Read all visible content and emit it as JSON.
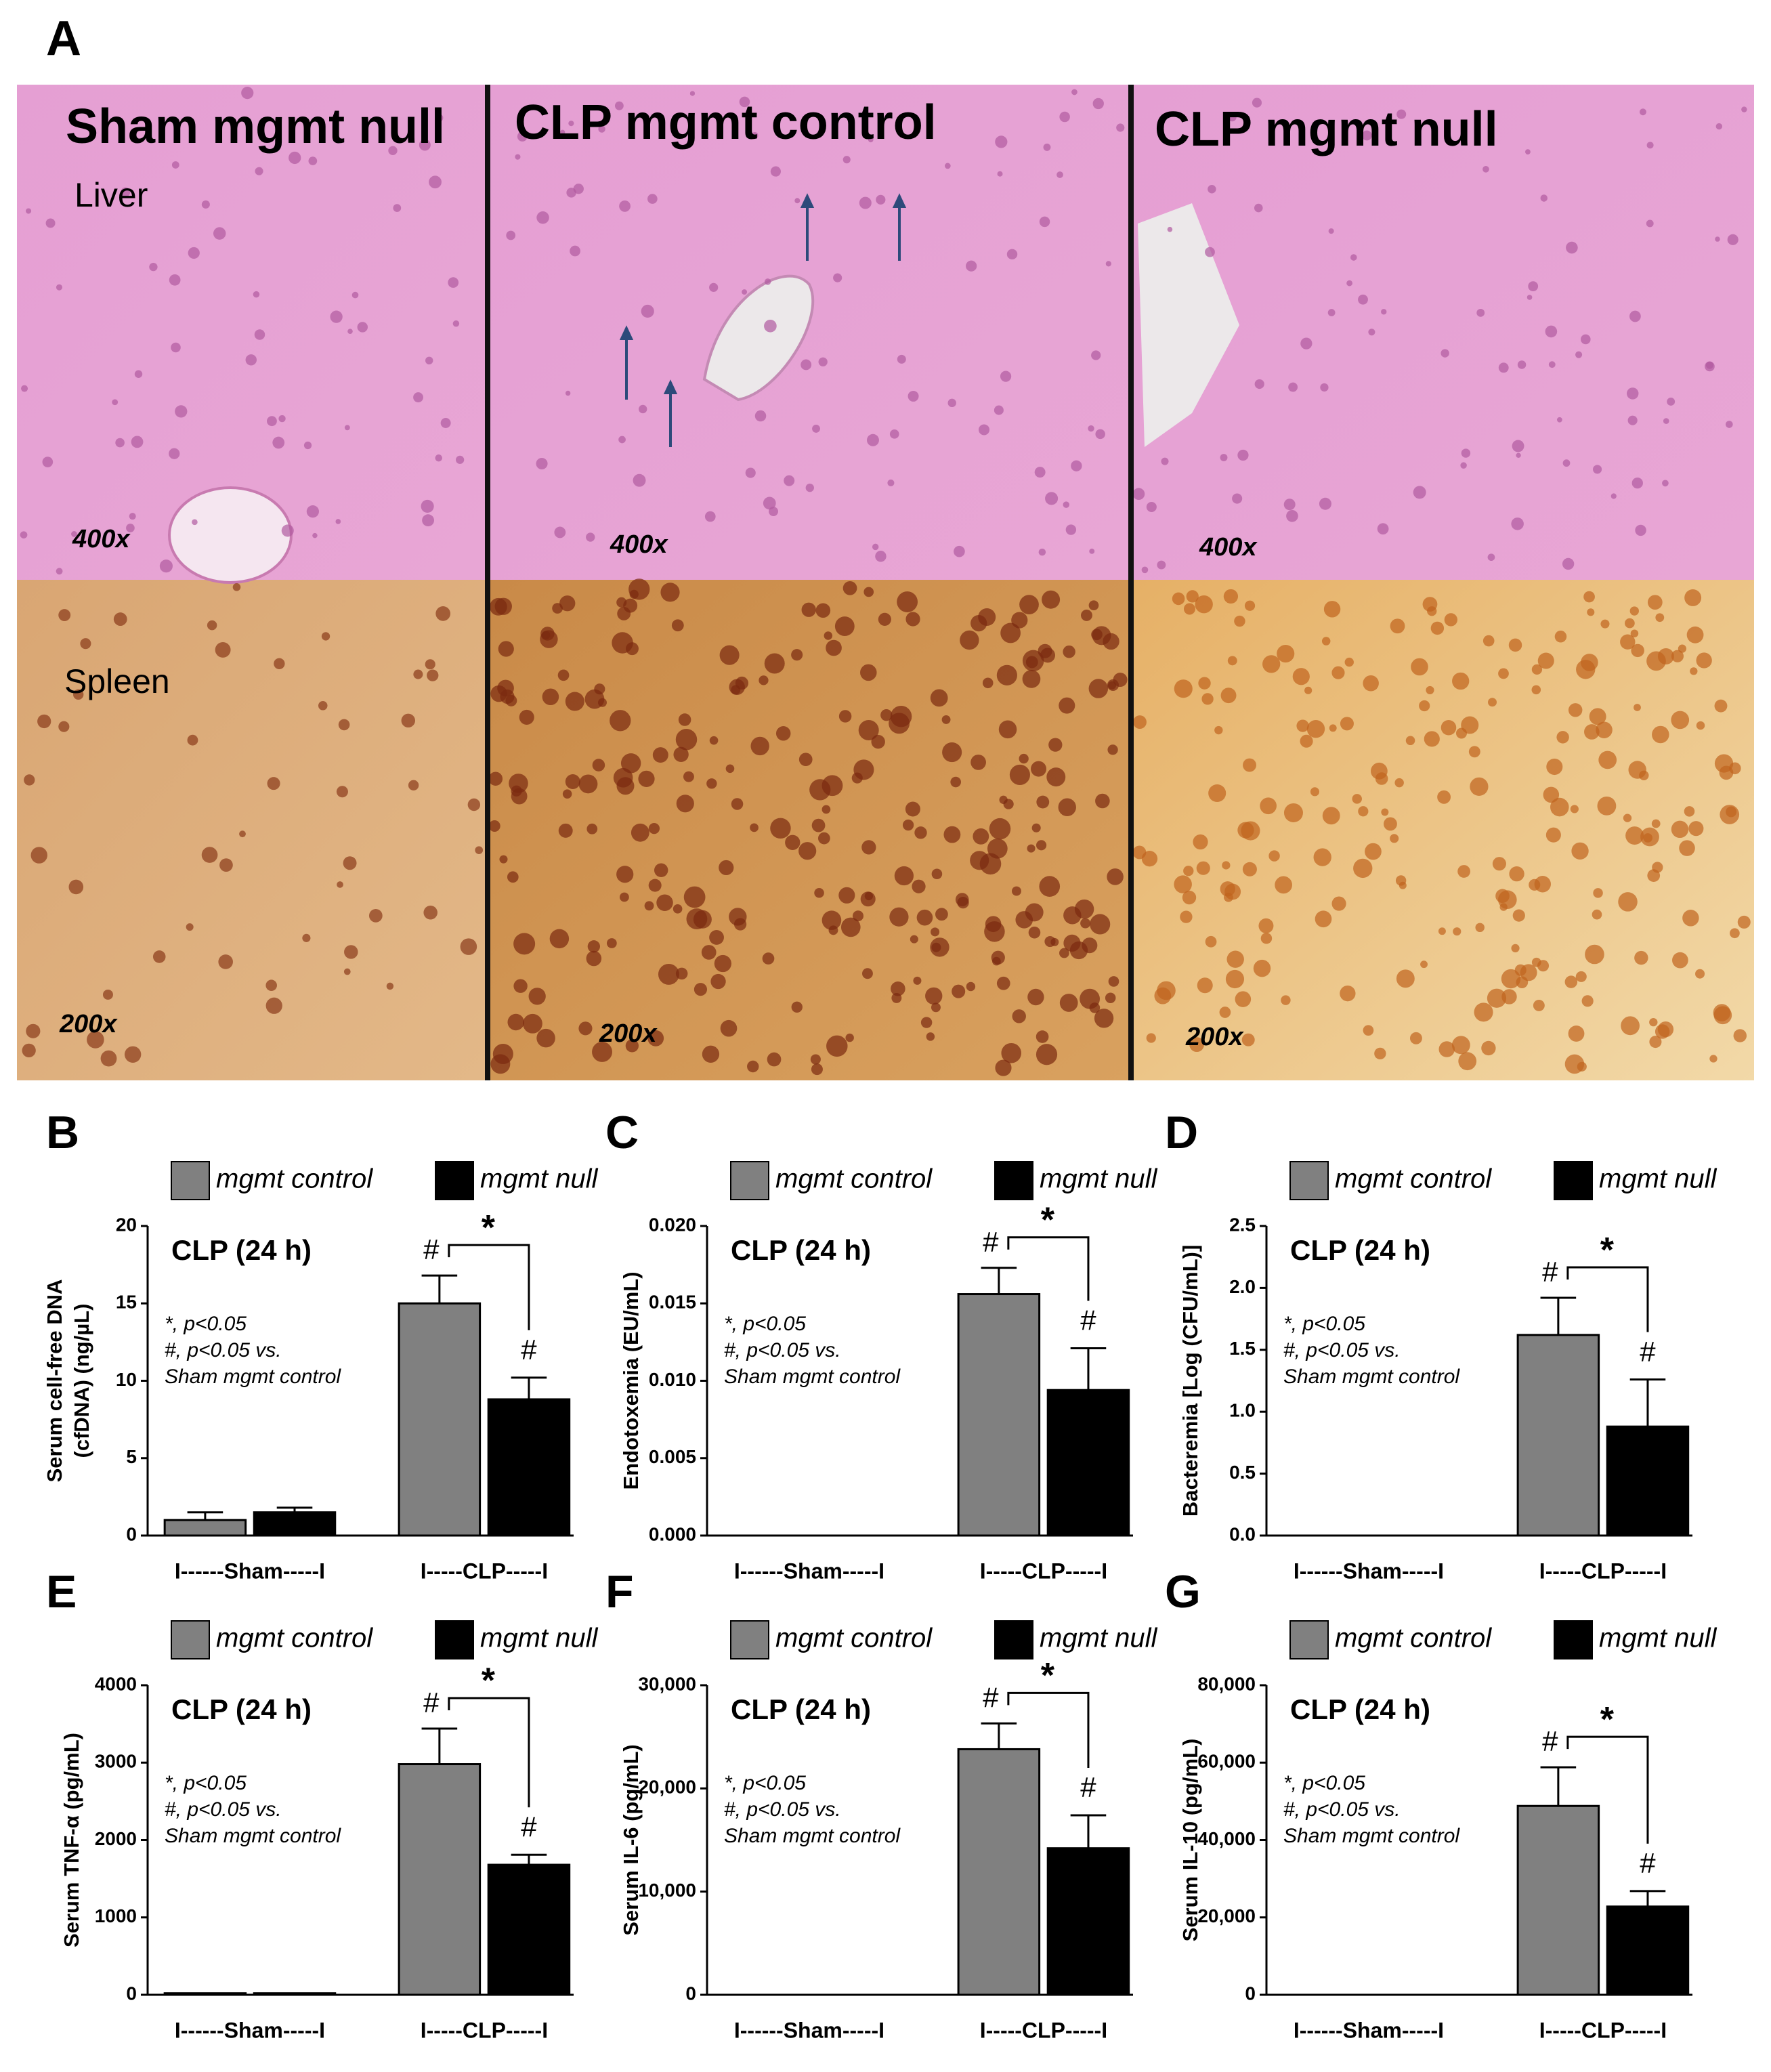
{
  "panel_a": {
    "label": "A",
    "columns": [
      "Sham mgmt null",
      "CLP mgmt control",
      "CLP mgmt null"
    ],
    "tissues": [
      "Liver",
      "Spleen"
    ],
    "magnifications": [
      [
        "400x",
        "400x",
        "400x"
      ],
      [
        "200x",
        "200x",
        "200x"
      ]
    ]
  },
  "chart_data": [
    {
      "type": "bar",
      "panel": "B",
      "title": "CLP (24 h)",
      "y_label": [
        "Serum cell-free DNA",
        "(cfDNA) (ng/µL)"
      ],
      "categories": [
        "I------Sham-----I",
        "I-----CLP-----I"
      ],
      "series": [
        {
          "name": "mgmt control",
          "color": "#808080",
          "values": [
            1.0,
            15.0
          ],
          "errors": [
            0.5,
            1.8
          ]
        },
        {
          "name": "mgmt null",
          "color": "#000000",
          "values": [
            1.5,
            8.8
          ],
          "errors": [
            0.3,
            1.4
          ]
        }
      ],
      "ylim": [
        0,
        20
      ],
      "yticks": [
        0,
        5,
        10,
        15,
        20
      ],
      "annotations": [
        "*, p<0.05",
        "#, p<0.05 vs.",
        "Sham mgmt control"
      ],
      "significance": {
        "hash": "#",
        "star": "*"
      }
    },
    {
      "type": "bar",
      "panel": "C",
      "title": "CLP (24 h)",
      "y_label": [
        "Endotoxemia (EU/mL)"
      ],
      "categories": [
        "I------Sham-----I",
        "I-----CLP-----I"
      ],
      "series": [
        {
          "name": "mgmt control",
          "color": "#808080",
          "values": [
            0,
            0.0156
          ],
          "errors": [
            null,
            0.0017
          ]
        },
        {
          "name": "mgmt null",
          "color": "#000000",
          "values": [
            0,
            0.0094
          ],
          "errors": [
            null,
            0.0027
          ]
        }
      ],
      "ylim": [
        0,
        0.02
      ],
      "yticks": [
        {
          "value": 0,
          "label": "0.000"
        },
        {
          "value": 0.005,
          "label": "0.005"
        },
        {
          "value": 0.01,
          "label": "0.010"
        },
        {
          "value": 0.015,
          "label": "0.015"
        },
        {
          "value": 0.02,
          "label": "0.020"
        }
      ],
      "annotations": [
        "*, p<0.05",
        "#, p<0.05 vs.",
        "Sham mgmt control"
      ],
      "significance": {
        "hash": "#",
        "star": "*"
      }
    },
    {
      "type": "bar",
      "panel": "D",
      "title": "CLP (24 h)",
      "y_label": [
        "Bacteremia [Log (CFU/mL)]"
      ],
      "categories": [
        "I------Sham-----I",
        "I-----CLP-----I"
      ],
      "series": [
        {
          "name": "mgmt control",
          "color": "#808080",
          "values": [
            0,
            1.62
          ],
          "errors": [
            null,
            0.3
          ]
        },
        {
          "name": "mgmt null",
          "color": "#000000",
          "values": [
            0,
            0.88
          ],
          "errors": [
            null,
            0.38
          ]
        }
      ],
      "ylim": [
        0,
        2.5
      ],
      "yticks": [
        {
          "value": 0,
          "label": "0.0"
        },
        0.5,
        {
          "value": 1,
          "label": "1.0"
        },
        1.5,
        {
          "value": 2,
          "label": "2.0"
        },
        2.5
      ],
      "annotations": [
        "*, p<0.05",
        "#, p<0.05 vs.",
        "Sham mgmt control"
      ],
      "significance": {
        "hash": "#",
        "star": "*"
      }
    },
    {
      "type": "bar",
      "panel": "E",
      "title": "CLP (24 h)",
      "y_label": [
        "Serum TNF-α (pg/mL)"
      ],
      "categories": [
        "I------Sham-----I",
        "I-----CLP-----I"
      ],
      "series": [
        {
          "name": "mgmt control",
          "color": "#808080",
          "values": [
            20,
            2980
          ],
          "errors": [
            null,
            460
          ]
        },
        {
          "name": "mgmt null",
          "color": "#000000",
          "values": [
            20,
            1680
          ],
          "errors": [
            null,
            130
          ]
        }
      ],
      "ylim": [
        0,
        4000
      ],
      "yticks": [
        0,
        1000,
        2000,
        3000,
        4000
      ],
      "annotations": [
        "*, p<0.05",
        "#, p<0.05 vs.",
        "Sham mgmt control"
      ],
      "significance": {
        "hash": "#",
        "star": "*"
      }
    },
    {
      "type": "bar",
      "panel": "F",
      "title": "CLP (24 h)",
      "y_label": [
        "Serum IL-6 (pg/mL)"
      ],
      "categories": [
        "I------Sham-----I",
        "I-----CLP-----I"
      ],
      "series": [
        {
          "name": "mgmt control",
          "color": "#808080",
          "values": [
            0,
            23800
          ],
          "errors": [
            null,
            2500
          ]
        },
        {
          "name": "mgmt null",
          "color": "#000000",
          "values": [
            0,
            14200
          ],
          "errors": [
            null,
            3200
          ]
        }
      ],
      "ylim": [
        0,
        30000
      ],
      "yticks": [
        0,
        {
          "value": 10000,
          "label": "10,000"
        },
        {
          "value": 20000,
          "label": "20,000"
        },
        {
          "value": 30000,
          "label": "30,000"
        }
      ],
      "annotations": [
        "*, p<0.05",
        "#, p<0.05 vs.",
        "Sham mgmt control"
      ],
      "significance": {
        "hash": "#",
        "star": "*"
      }
    },
    {
      "type": "bar",
      "panel": "G",
      "title": "CLP (24 h)",
      "y_label": [
        "Serum IL-10 (pg/mL)"
      ],
      "categories": [
        "I------Sham-----I",
        "I-----CLP-----I"
      ],
      "series": [
        {
          "name": "mgmt control",
          "color": "#808080",
          "values": [
            0,
            48800
          ],
          "errors": [
            null,
            10000
          ]
        },
        {
          "name": "mgmt null",
          "color": "#000000",
          "values": [
            0,
            22800
          ],
          "errors": [
            null,
            4000
          ]
        }
      ],
      "ylim": [
        0,
        80000
      ],
      "yticks": [
        0,
        {
          "value": 20000,
          "label": "20,000"
        },
        {
          "value": 40000,
          "label": "40,000"
        },
        {
          "value": 60000,
          "label": "60,000"
        },
        {
          "value": 80000,
          "label": "80,000"
        }
      ],
      "annotations": [
        "*, p<0.05",
        "#, p<0.05 vs.",
        "Sham mgmt control"
      ],
      "significance": {
        "hash": "#",
        "star": "*"
      }
    }
  ]
}
